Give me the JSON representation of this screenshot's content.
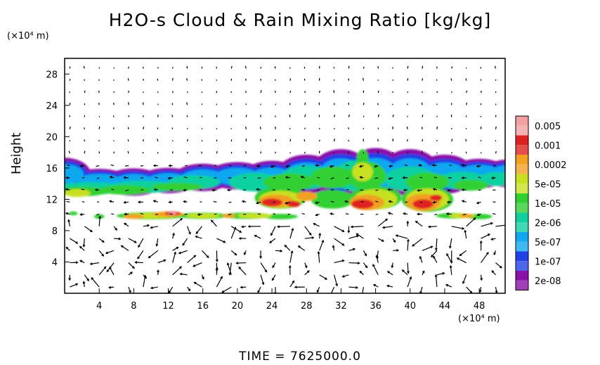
{
  "chart_data": {
    "type": "heatmap",
    "title": "H2O-s Cloud & Rain Mixing Ratio [kg/kg]",
    "ylabel": "Height",
    "y_unit": "(×10⁴ m)",
    "x_unit": "(×10⁴ m)",
    "xlim": [
      0,
      51
    ],
    "ylim": [
      0,
      30
    ],
    "x_ticks": [
      4,
      8,
      12,
      16,
      20,
      24,
      28,
      32,
      36,
      40,
      44,
      48
    ],
    "y_ticks": [
      4,
      8,
      12,
      16,
      20,
      24,
      28
    ],
    "colorbar": {
      "labels": [
        "0.005",
        "0.001",
        "0.0002",
        "5e-05",
        "1e-05",
        "2e-06",
        "5e-07",
        "1e-07",
        "2e-08"
      ],
      "colors": [
        "#f4a0a0",
        "#e02020",
        "#f2a020",
        "#c8e020",
        "#30d030",
        "#10d0a0",
        "#10a8f0",
        "#2040e8",
        "#8a10a8"
      ]
    },
    "overlay": "wind vectors",
    "time_label": "TIME =  7625000.0"
  }
}
